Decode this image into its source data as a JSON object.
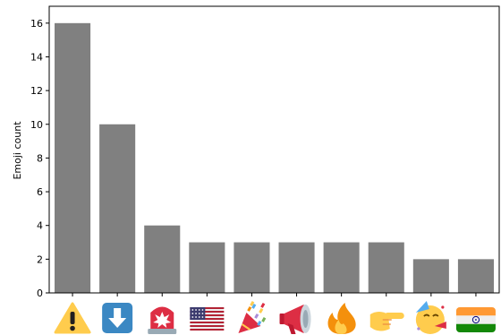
{
  "chart_data": {
    "type": "bar",
    "title": "",
    "xlabel": "",
    "ylabel": "Emoji count",
    "ylim": [
      0,
      17
    ],
    "yticks": [
      0,
      2,
      4,
      6,
      8,
      10,
      12,
      14,
      16
    ],
    "grid": false,
    "bar_color": "#808080",
    "categories": [
      "warning-icon",
      "down-arrow-icon",
      "police-light-icon",
      "us-flag-icon",
      "party-popper-icon",
      "megaphone-icon",
      "fire-icon",
      "pointing-hand-icon",
      "partying-face-icon",
      "india-flag-icon"
    ],
    "values": [
      16,
      10,
      4,
      3,
      3,
      3,
      3,
      3,
      2,
      2
    ]
  }
}
